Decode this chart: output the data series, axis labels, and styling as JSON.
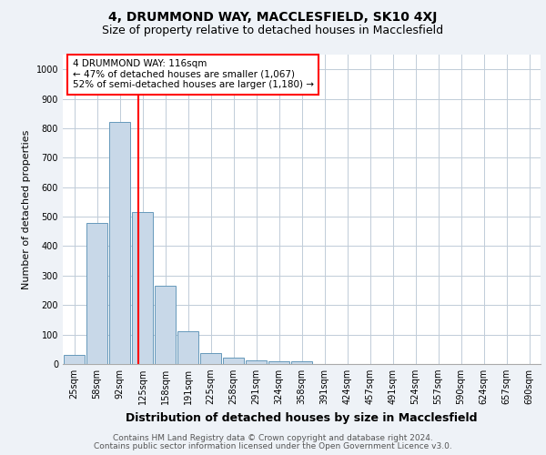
{
  "title1": "4, DRUMMOND WAY, MACCLESFIELD, SK10 4XJ",
  "title2": "Size of property relative to detached houses in Macclesfield",
  "xlabel": "Distribution of detached houses by size in Macclesfield",
  "ylabel": "Number of detached properties",
  "footer1": "Contains HM Land Registry data © Crown copyright and database right 2024.",
  "footer2": "Contains public sector information licensed under the Open Government Licence v3.0.",
  "bar_labels": [
    "25sqm",
    "58sqm",
    "92sqm",
    "125sqm",
    "158sqm",
    "191sqm",
    "225sqm",
    "258sqm",
    "291sqm",
    "324sqm",
    "358sqm",
    "391sqm",
    "424sqm",
    "457sqm",
    "491sqm",
    "524sqm",
    "557sqm",
    "590sqm",
    "624sqm",
    "657sqm",
    "690sqm"
  ],
  "bar_values": [
    30,
    480,
    820,
    515,
    265,
    112,
    38,
    22,
    12,
    8,
    8,
    0,
    0,
    0,
    0,
    0,
    0,
    0,
    0,
    0,
    0
  ],
  "bar_color": "#c8d8e8",
  "bar_edgecolor": "#6699bb",
  "vline_color": "red",
  "vline_pos": 2.82,
  "annotation_text": "4 DRUMMOND WAY: 116sqm\n← 47% of detached houses are smaller (1,067)\n52% of semi-detached houses are larger (1,180) →",
  "annotation_box_color": "white",
  "annotation_box_edgecolor": "red",
  "ylim": [
    0,
    1050
  ],
  "yticks": [
    0,
    100,
    200,
    300,
    400,
    500,
    600,
    700,
    800,
    900,
    1000
  ],
  "background_color": "#eef2f7",
  "plot_bg_color": "#ffffff",
  "grid_color": "#c0ccd8",
  "title1_fontsize": 10,
  "title2_fontsize": 9,
  "xlabel_fontsize": 9,
  "ylabel_fontsize": 8,
  "tick_fontsize": 7,
  "annotation_fontsize": 7.5,
  "footer_fontsize": 6.5
}
